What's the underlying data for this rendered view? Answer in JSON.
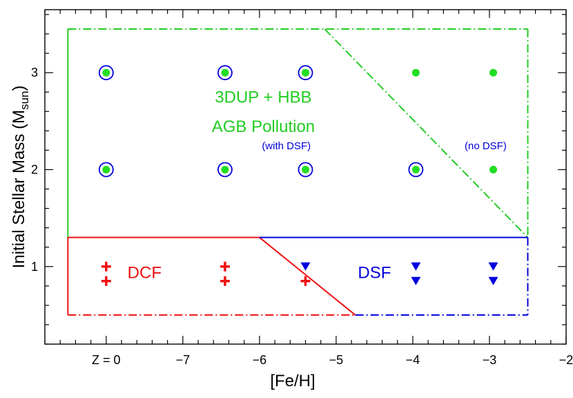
{
  "chart_data": {
    "type": "scatter",
    "xlabel": "[Fe/H]",
    "ylabel_main": "Initial Stellar Mass (M",
    "ylabel_sub": "sun",
    "ylabel_end": ")",
    "xlim": [
      -8.8,
      -2.0
    ],
    "ylim": [
      0.2,
      3.65
    ],
    "x_ticks": [
      {
        "value": -8.0,
        "label": "Z = 0"
      },
      {
        "value": -7.0,
        "label": "−7"
      },
      {
        "value": -6.0,
        "label": "−6"
      },
      {
        "value": -5.0,
        "label": "−5"
      },
      {
        "value": -4.0,
        "label": "−4"
      },
      {
        "value": -3.0,
        "label": "−3"
      },
      {
        "value": -2.0,
        "label": "−2"
      }
    ],
    "y_ticks": [
      {
        "value": 1,
        "label": "1"
      },
      {
        "value": 2,
        "label": "2"
      },
      {
        "value": 3,
        "label": "3"
      }
    ],
    "x_minor_step": 0.2,
    "y_minor_step": 0.2,
    "series": [
      {
        "marker": "filled-circle",
        "color": "#22dd22",
        "points": [
          {
            "x": -8.0,
            "y": 3
          },
          {
            "x": -6.45,
            "y": 3
          },
          {
            "x": -5.4,
            "y": 3
          },
          {
            "x": -3.96,
            "y": 3
          },
          {
            "x": -2.95,
            "y": 3
          },
          {
            "x": -8.0,
            "y": 2
          },
          {
            "x": -6.45,
            "y": 2
          },
          {
            "x": -5.4,
            "y": 2
          },
          {
            "x": -3.96,
            "y": 2
          },
          {
            "x": -2.95,
            "y": 2
          }
        ]
      },
      {
        "marker": "open-circle",
        "color": "#0000dd",
        "points": [
          {
            "x": -8.0,
            "y": 3
          },
          {
            "x": -6.45,
            "y": 3
          },
          {
            "x": -5.4,
            "y": 3
          },
          {
            "x": -8.0,
            "y": 2
          },
          {
            "x": -6.45,
            "y": 2
          },
          {
            "x": -5.4,
            "y": 2
          },
          {
            "x": -3.96,
            "y": 2
          }
        ]
      },
      {
        "marker": "plus",
        "color": "#ee1111",
        "points": [
          {
            "x": -8.0,
            "y": 1.0
          },
          {
            "x": -8.0,
            "y": 0.85
          },
          {
            "x": -6.45,
            "y": 1.0
          },
          {
            "x": -6.45,
            "y": 0.85
          },
          {
            "x": -5.4,
            "y": 0.85
          }
        ]
      },
      {
        "marker": "down-triangle",
        "color": "#0000dd",
        "points": [
          {
            "x": -5.4,
            "y": 1.0
          },
          {
            "x": -3.96,
            "y": 1.0
          },
          {
            "x": -3.96,
            "y": 0.85
          },
          {
            "x": -2.95,
            "y": 1.0
          },
          {
            "x": -2.95,
            "y": 0.85
          }
        ]
      }
    ],
    "regions": [
      {
        "name": "agb-region",
        "color": "#22cc22",
        "segments": [
          {
            "points": [
              [
                -8.5,
                1.3
              ],
              [
                -8.5,
                3.45
              ]
            ],
            "style": "solid"
          },
          {
            "points": [
              [
                -8.5,
                3.45
              ],
              [
                -2.5,
                3.45
              ]
            ],
            "style": "dashdot"
          },
          {
            "points": [
              [
                -2.5,
                3.45
              ],
              [
                -2.5,
                1.3
              ]
            ],
            "style": "dashdot"
          },
          {
            "points": [
              [
                -5.15,
                3.45
              ],
              [
                -2.5,
                1.3
              ]
            ],
            "style": "dashdot"
          }
        ]
      },
      {
        "name": "dcf-region",
        "color": "#ee1111",
        "segments": [
          {
            "points": [
              [
                -8.5,
                1.3
              ],
              [
                -6.0,
                1.3
              ]
            ],
            "style": "solid"
          },
          {
            "points": [
              [
                -8.5,
                1.3
              ],
              [
                -8.5,
                0.5
              ]
            ],
            "style": "solid"
          },
          {
            "points": [
              [
                -6.0,
                1.3
              ],
              [
                -4.75,
                0.5
              ]
            ],
            "style": "solid"
          },
          {
            "points": [
              [
                -8.5,
                0.5
              ],
              [
                -4.75,
                0.5
              ]
            ],
            "style": "dashdot"
          }
        ]
      },
      {
        "name": "dsf-region",
        "color": "#0000dd",
        "segments": [
          {
            "points": [
              [
                -6.0,
                1.3
              ],
              [
                -2.5,
                1.3
              ]
            ],
            "style": "solid"
          },
          {
            "points": [
              [
                -2.5,
                1.3
              ],
              [
                -2.5,
                0.5
              ]
            ],
            "style": "dashdot"
          },
          {
            "points": [
              [
                -4.75,
                0.5
              ],
              [
                -2.5,
                0.5
              ]
            ],
            "style": "dashdot"
          }
        ]
      }
    ],
    "annotations": [
      {
        "text": "3DUP + HBB",
        "x": -5.95,
        "y": 2.69,
        "color": "#22cc22",
        "size": 24
      },
      {
        "text": "AGB Pollution",
        "x": -5.95,
        "y": 2.39,
        "color": "#22cc22",
        "size": 24
      },
      {
        "text": "(with DSF)",
        "x": -5.65,
        "y": 2.21,
        "color": "#0000dd",
        "size": 15
      },
      {
        "text": "(no DSF)",
        "x": -3.05,
        "y": 2.21,
        "color": "#0000dd",
        "size": 15
      },
      {
        "text": "DCF",
        "x": -7.5,
        "y": 0.88,
        "color": "#ee1111",
        "size": 24
      },
      {
        "text": "DSF",
        "x": -4.5,
        "y": 0.88,
        "color": "#0000dd",
        "size": 24
      }
    ]
  }
}
